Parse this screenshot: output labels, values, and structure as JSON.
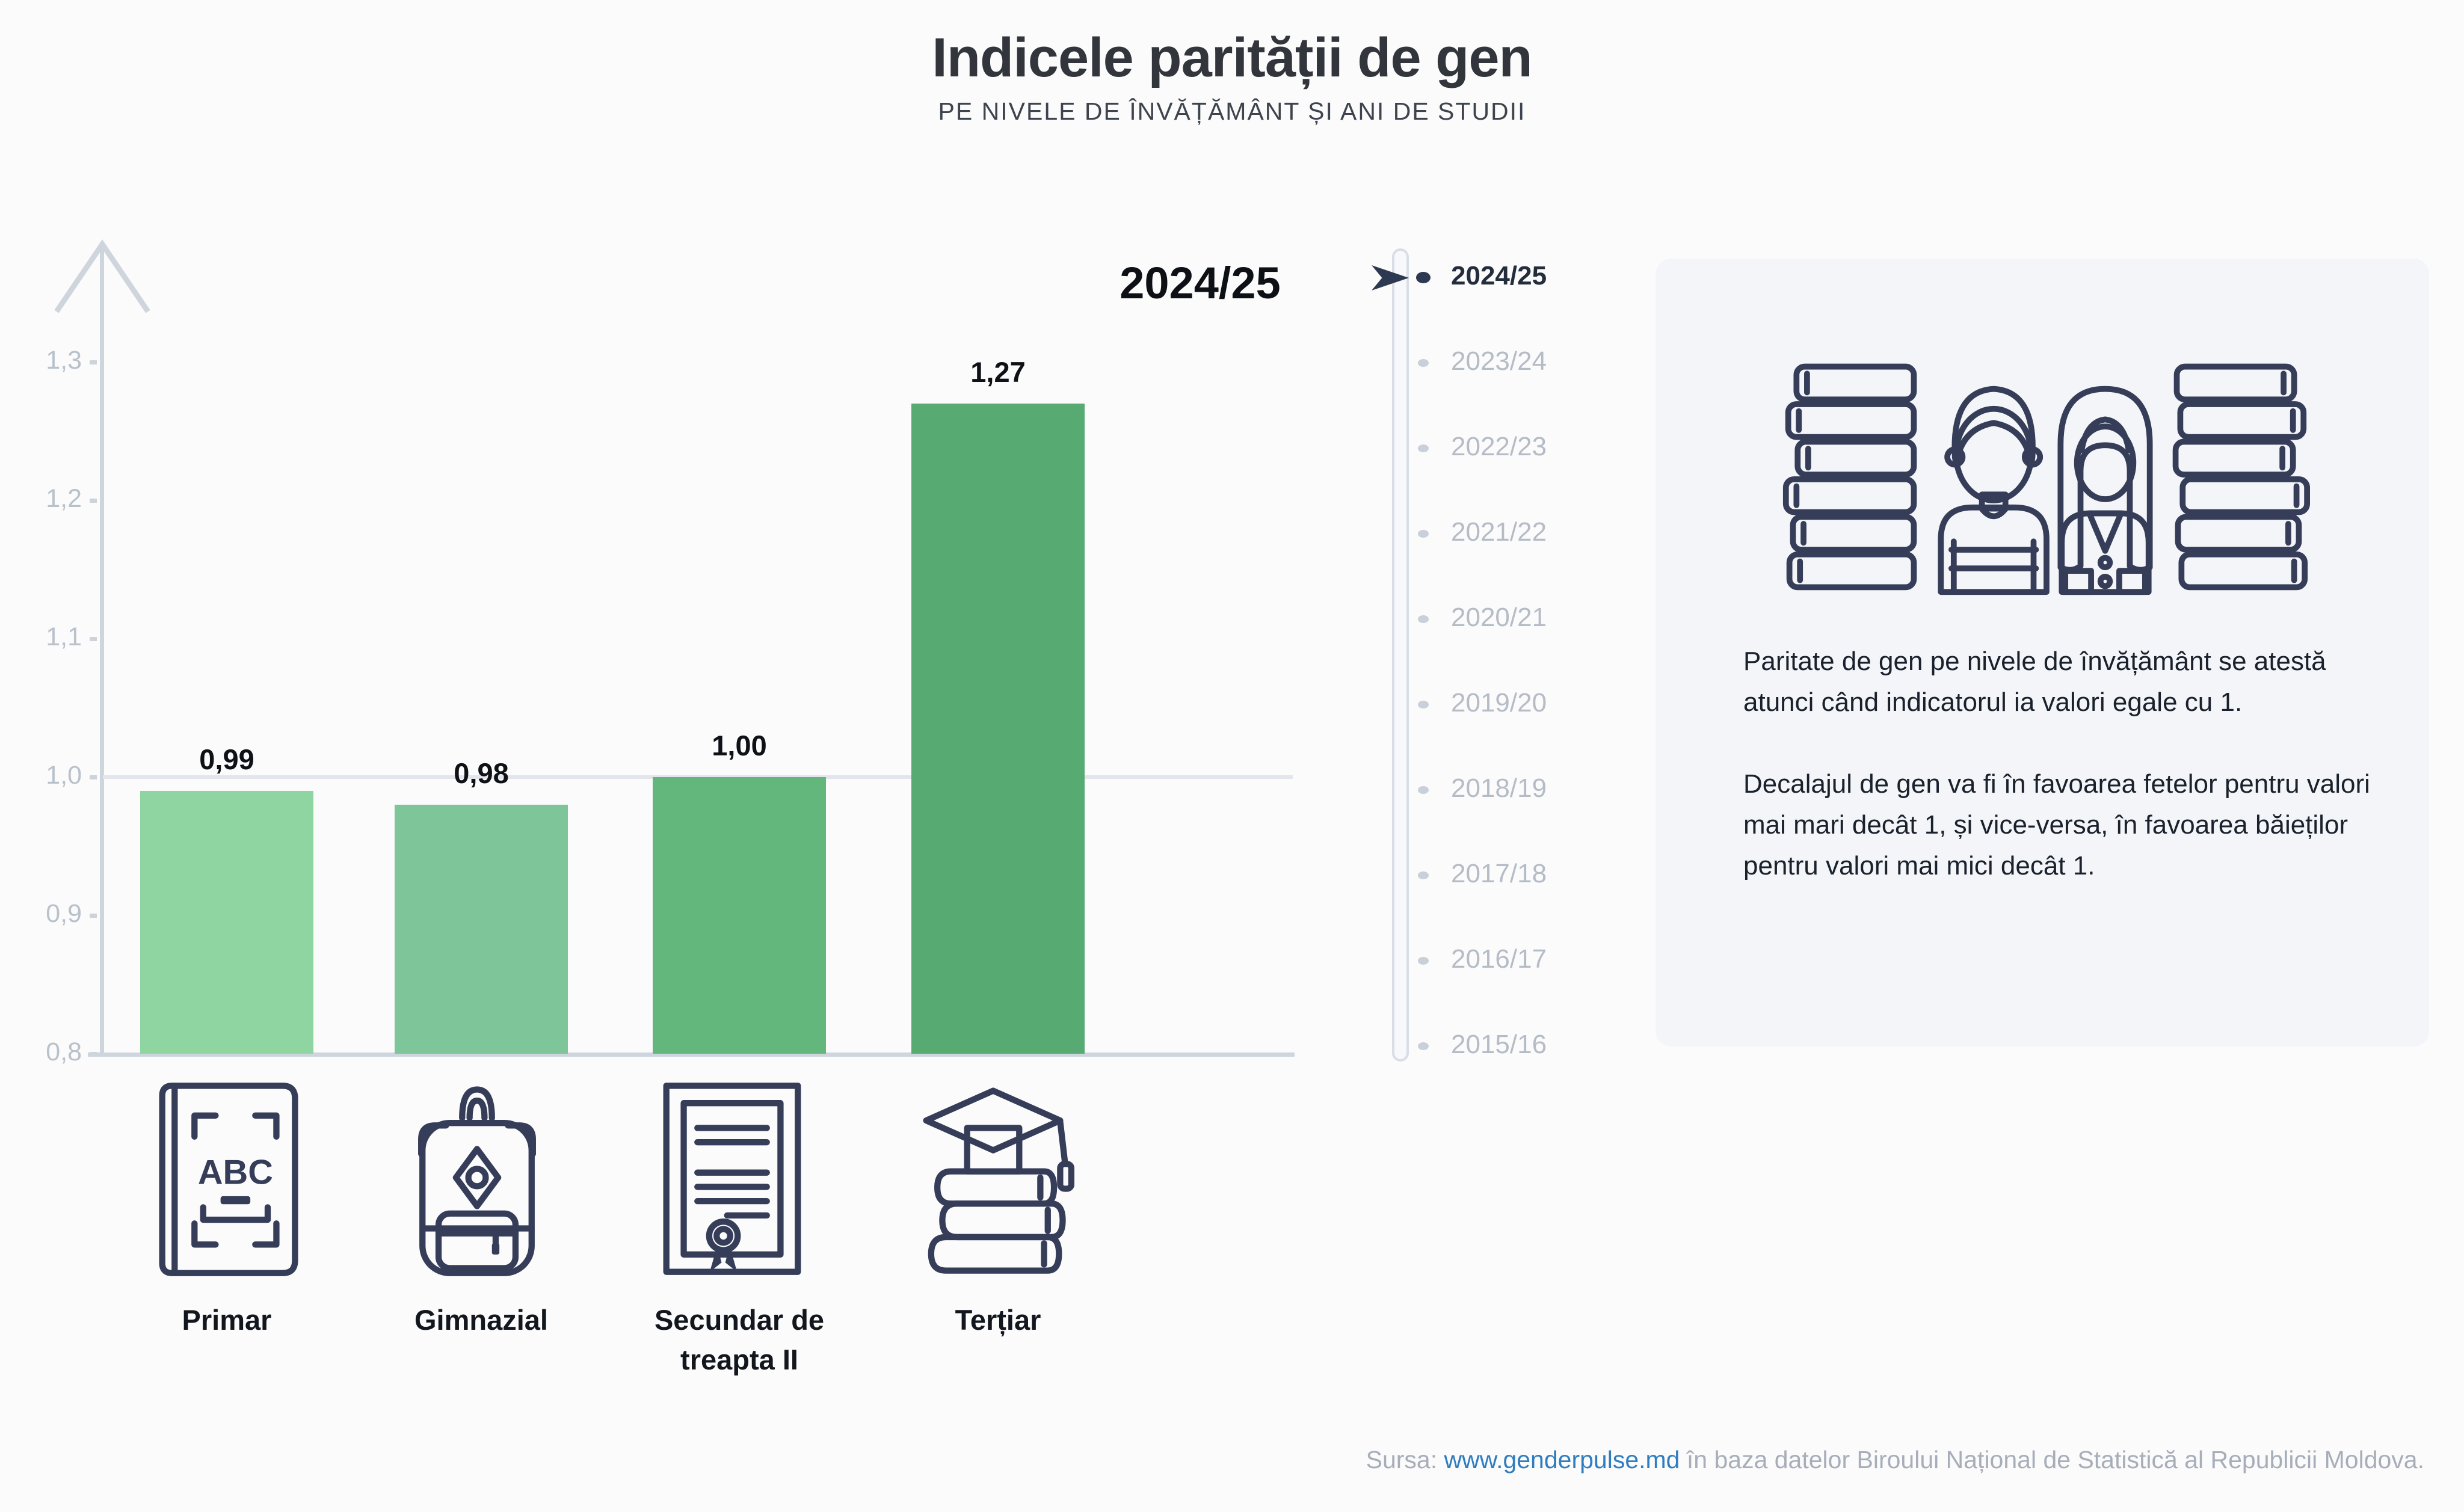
{
  "header": {
    "title": "Indicele parității de gen",
    "subtitle": "PE NIVELE DE ÎNVĂȚĂMÂNT ȘI ANI DE STUDII"
  },
  "chart_data": {
    "type": "bar",
    "categories": [
      "Primar",
      "Gimnazial",
      "Secundar de treapta II",
      "Terțiar"
    ],
    "values": [
      0.99,
      0.98,
      1.0,
      1.27
    ],
    "value_labels": [
      "0,99",
      "0,98",
      "1,00",
      "1,27"
    ],
    "bar_colors": [
      "#8fd5a2",
      "#7ec59a",
      "#63b67c",
      "#57aa71"
    ],
    "category_icons": [
      "abc-book-icon",
      "backpack-icon",
      "diploma-icon",
      "graduation-books-icon"
    ],
    "title": "Indicele parității de gen",
    "subtitle": "PE NIVELE DE ÎNVĂȚĂMÂNT ȘI ANI DE STUDII",
    "xlabel": "",
    "ylabel": "",
    "ylim": [
      0.8,
      1.35
    ],
    "yticks": [
      "1,3",
      "1,2",
      "1,1",
      "1,0",
      "0,9",
      "0,8"
    ],
    "ytick_values": [
      1.3,
      1.2,
      1.1,
      1.0,
      0.9,
      0.8
    ],
    "reference_line": 1.0,
    "grid": "single horizontal reference line at 1,0",
    "legend": "none",
    "selected_year": "2024/25"
  },
  "selected_year_label": "2024/25",
  "timeline": {
    "years": [
      "2024/25",
      "2023/24",
      "2022/23",
      "2021/22",
      "2020/21",
      "2019/20",
      "2018/19",
      "2017/18",
      "2016/17",
      "2015/16"
    ],
    "active_index": 0
  },
  "info_box": {
    "paragraph_1": "Paritate de gen pe nivele de învățământ se atestă atunci când indicatorul ia valori egale cu 1.",
    "paragraph_2": "Decalajul de gen va fi în favoarea fetelor pentru valori mai mari decât 1, și vice-versa, în favoarea băieților pentru valori mai mici decât 1."
  },
  "icon_text": {
    "abc_label": "ABC"
  },
  "footer": {
    "prefix": "Sursa: ",
    "link": "www.genderpulse.md",
    "suffix": " în baza datelor Biroului Național de Statistică al Republicii Moldova."
  },
  "colors": {
    "background": "#fbfbfc",
    "infobox_background": "#f3f5f8",
    "axis": "#cfd5dd",
    "reference_line": "#e2e6ec",
    "tick_text": "#b9c1cb",
    "accent_dark": "#2c3950",
    "link": "#2f7dbf",
    "illustration_green": "#72c189",
    "illustration_yellow_hair": "#f7c95e",
    "illustration_tan_hair": "#cfb287"
  }
}
